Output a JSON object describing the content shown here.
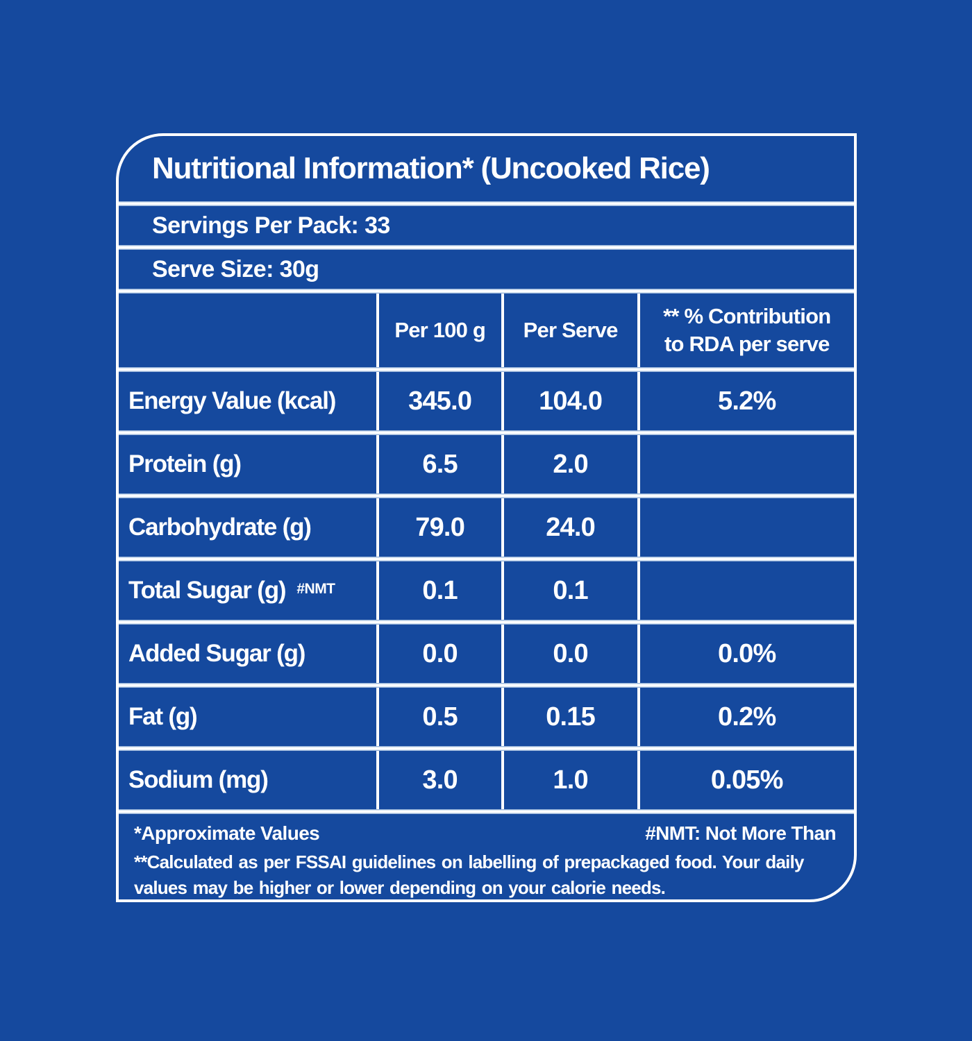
{
  "colors": {
    "background": "#15499e",
    "text": "#ffffff",
    "gridline": "#ffffff",
    "gridline_glow": "#cfdff0"
  },
  "panel": {
    "title": "Nutritional Information* (Uncooked Rice)",
    "servings_per_pack": "Servings Per Pack: 33",
    "serve_size": "Serve Size: 30g"
  },
  "header": {
    "col_label": "",
    "col_per_100g": "Per 100 g",
    "col_per_serve": "Per Serve",
    "col_rda_line1": "** % Contribution",
    "col_rda_line2": "to RDA per serve"
  },
  "rows": [
    {
      "label": "Energy Value (kcal)",
      "note": "",
      "per_100g": "345.0",
      "per_serve": "104.0",
      "rda": "5.2%"
    },
    {
      "label": "Protein (g)",
      "note": "",
      "per_100g": "6.5",
      "per_serve": "2.0",
      "rda": ""
    },
    {
      "label": "Carbohydrate (g)",
      "note": "",
      "per_100g": "79.0",
      "per_serve": "24.0",
      "rda": ""
    },
    {
      "label": "Total Sugar (g)",
      "note": "#NMT",
      "per_100g": "0.1",
      "per_serve": "0.1",
      "rda": ""
    },
    {
      "label": "Added Sugar (g)",
      "note": "",
      "per_100g": "0.0",
      "per_serve": "0.0",
      "rda": "0.0%"
    },
    {
      "label": "Fat (g)",
      "note": "",
      "per_100g": "0.5",
      "per_serve": "0.15",
      "rda": "0.2%"
    },
    {
      "label": "Sodium (mg)",
      "note": "",
      "per_100g": "3.0",
      "per_serve": "1.0",
      "rda": "0.05%"
    }
  ],
  "footer": {
    "approximate": "*Approximate Values",
    "nmt": "#NMT: Not More Than",
    "note": "**Calculated as per FSSAI guidelines on labelling of prepackaged food. Your daily values may be higher or lower depending on your calorie needs."
  }
}
